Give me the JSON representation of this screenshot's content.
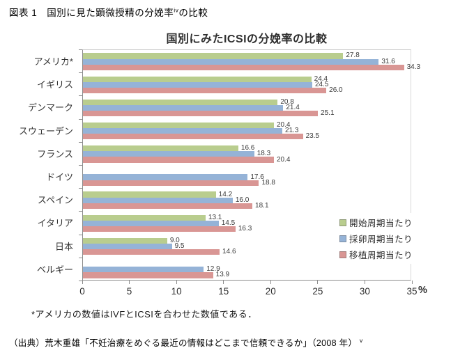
{
  "page": {
    "header_main": "図表 1　国別に見た顕微授精の分娩率",
    "header_sup": "iv",
    "header_tail": "の比較",
    "footnote": "*アメリカの数値はIVFとICSIを合わせた数値である．",
    "source_main": "（出典）荒木重雄「不妊治療をめぐる最近の情報はどこまで信頼できるか」（2008 年）",
    "source_sup": "v"
  },
  "chart_data": {
    "type": "bar",
    "orientation": "horizontal",
    "title": "国別にみたICSIの分娩率の比較",
    "categories": [
      "アメリカ*",
      "イギリス",
      "デンマーク",
      "スウェーデン",
      "フランス",
      "ドイツ",
      "スペイン",
      "イタリア",
      "日本",
      "ベルギー"
    ],
    "series": [
      {
        "name": "開始周期当たり",
        "color": "#b9cd8e",
        "values": [
          27.8,
          24.4,
          20.8,
          20.4,
          16.6,
          null,
          14.2,
          13.1,
          9.0,
          null
        ]
      },
      {
        "name": "採卵周期当たり",
        "color": "#95b3d7",
        "values": [
          31.6,
          24.5,
          21.4,
          21.3,
          18.3,
          17.6,
          16.0,
          14.5,
          9.5,
          12.9
        ]
      },
      {
        "name": "移植周期当たり",
        "color": "#d99694",
        "values": [
          34.3,
          26.0,
          25.1,
          23.5,
          20.4,
          18.8,
          18.1,
          16.3,
          14.6,
          13.9
        ]
      }
    ],
    "xlim": [
      0,
      35
    ],
    "xticks": [
      0,
      5,
      10,
      15,
      20,
      25,
      30,
      35
    ],
    "x_unit": "%",
    "value_label_decimals": 1,
    "grid": false,
    "legend_position": "right-middle"
  }
}
